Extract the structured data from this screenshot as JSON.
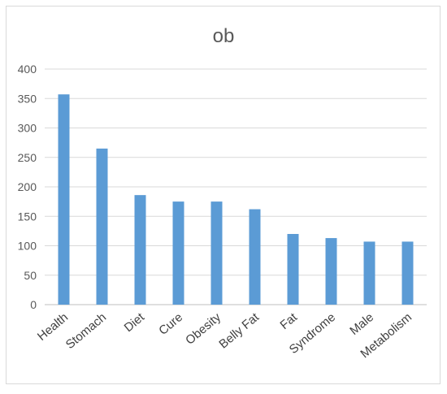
{
  "chart_data": {
    "type": "bar",
    "title": "ob",
    "categories": [
      "Health",
      "Stomach",
      "Diet",
      "Cure",
      "Obesity",
      "Belly Fat",
      "Fat",
      "Syndrome",
      "Male",
      "Metabolism"
    ],
    "values": [
      357,
      265,
      186,
      175,
      175,
      162,
      120,
      113,
      107,
      107
    ],
    "ylim": [
      0,
      400
    ],
    "yticks": [
      0,
      50,
      100,
      150,
      200,
      250,
      300,
      350,
      400
    ],
    "grid": true,
    "bar_color": "#5b9bd5"
  }
}
